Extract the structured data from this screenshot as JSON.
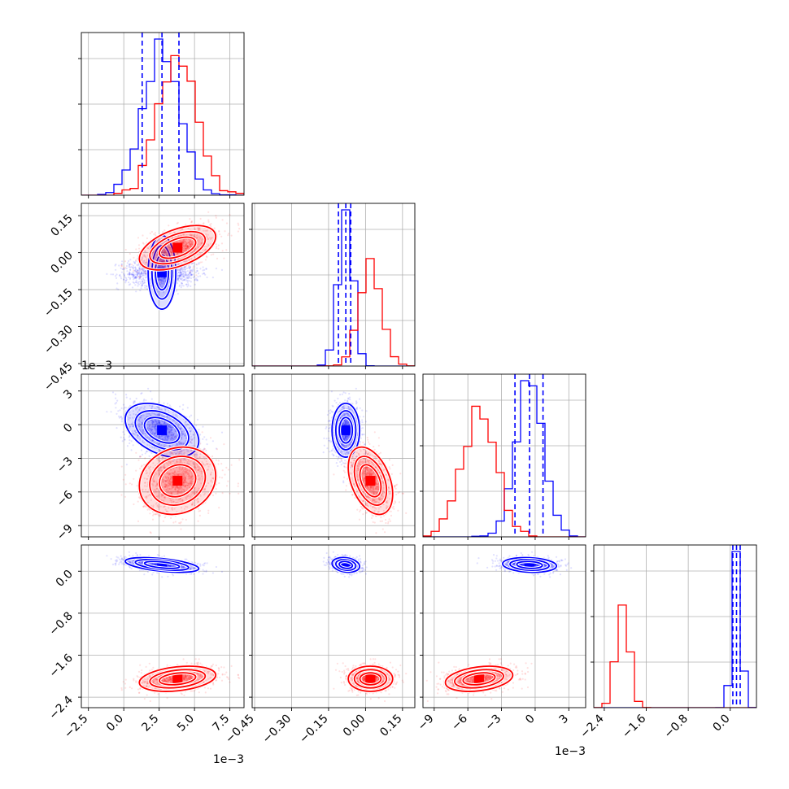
{
  "chart_data": {
    "type": "corner",
    "title": "",
    "grid": true,
    "colors": {
      "blue": "#0000ff",
      "red": "#ff0000",
      "axis": "#000000",
      "grid": "#b0b0b0"
    },
    "parameters": [
      {
        "index": 0,
        "range": [
          -3.0,
          8.5
        ],
        "ticks": [
          -2.5,
          0.0,
          2.5,
          5.0,
          7.5
        ],
        "tick_labels": [
          "−2.5",
          "0.0",
          "2.5",
          "5.0",
          "7.5"
        ],
        "offset_text": "1e−3"
      },
      {
        "index": 1,
        "range": [
          -0.46,
          0.2
        ],
        "ticks": [
          -0.45,
          -0.3,
          -0.15,
          0.0,
          0.15
        ],
        "tick_labels": [
          "−0.45",
          "−0.30",
          "−0.15",
          "0.00",
          "0.15"
        ],
        "offset_text": ""
      },
      {
        "index": 2,
        "range": [
          -10.0,
          4.5
        ],
        "ticks": [
          -9,
          -6,
          -3,
          0,
          3
        ],
        "tick_labels": [
          "−9",
          "−6",
          "−3",
          "0",
          "3"
        ],
        "offset_text": "1e−3"
      },
      {
        "index": 3,
        "range": [
          -2.6,
          0.5
        ],
        "ticks": [
          -2.4,
          -1.6,
          -0.8,
          0.0
        ],
        "tick_labels": [
          "−2.4",
          "−1.6",
          "−0.8",
          "0.0"
        ],
        "offset_text": ""
      }
    ],
    "series": [
      {
        "color": "#0000ff",
        "mean": [
          2.7,
          -0.08,
          -0.5,
          0.12
        ],
        "std": [
          1.3,
          0.028,
          1.2,
          0.07
        ],
        "corr": [
          [
            0.0,
            0.1,
            0.0
          ],
          [
            -0.4,
            0.0,
            0.0
          ],
          [
            -0.5,
            -0.2,
            -0.15
          ]
        ],
        "quantiles": [
          [
            1.3,
            2.7,
            3.9
          ],
          [
            -0.11,
            -0.08,
            -0.06
          ],
          [
            -1.8,
            -0.5,
            0.7
          ],
          [
            0.05,
            0.12,
            0.19
          ]
        ]
      },
      {
        "color": "#ff0000",
        "mean": [
          3.8,
          0.02,
          -5.0,
          -2.05
        ],
        "std": [
          1.35,
          0.045,
          1.5,
          0.12
        ],
        "corr": [
          [
            0.5,
            0.0,
            0.0
          ],
          [
            0.15,
            -0.4,
            0.0
          ],
          [
            0.3,
            0.0,
            0.3
          ]
        ],
        "quantiles": []
      }
    ]
  }
}
